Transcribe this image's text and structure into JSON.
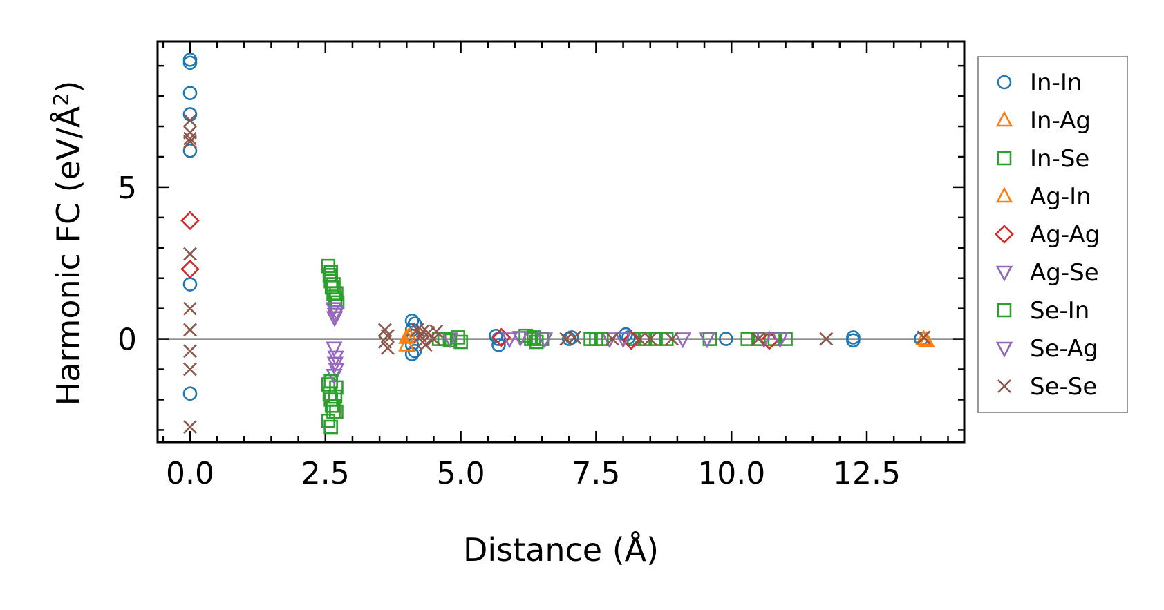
{
  "chart_data": {
    "type": "scatter",
    "xlabel": "Distance (Å)",
    "ylabel_main": "Harmonic FC (eV/Å",
    "ylabel_sup": "2",
    "ylabel_close": ")",
    "xlim": [
      -0.6,
      14.3
    ],
    "ylim": [
      -3.4,
      9.8
    ],
    "xticks": [
      0.0,
      2.5,
      5.0,
      7.5,
      10.0,
      12.5
    ],
    "xtick_labels": [
      "0.0",
      "2.5",
      "5.0",
      "7.5",
      "10.0",
      "12.5"
    ],
    "yticks": [
      0,
      5
    ],
    "ytick_labels": [
      "0",
      "5"
    ],
    "x_minor_step": 0.5,
    "y_minor_step": 1,
    "zero_line": true,
    "grid": false,
    "legend_position": "outside-right",
    "series": [
      {
        "name": "In-In",
        "marker": "circle",
        "color": "#1f77b4",
        "points": [
          [
            0,
            9.2
          ],
          [
            0,
            9.1
          ],
          [
            0,
            8.1
          ],
          [
            0,
            7.4
          ],
          [
            0,
            6.2
          ],
          [
            0,
            1.8
          ],
          [
            0,
            -1.8
          ],
          [
            4.1,
            0.6
          ],
          [
            4.15,
            0.5
          ],
          [
            4.1,
            0.3
          ],
          [
            4.12,
            0.1
          ],
          [
            4.1,
            -0.2
          ],
          [
            4.15,
            -0.4
          ],
          [
            4.1,
            -0.5
          ],
          [
            5.65,
            0.1
          ],
          [
            5.7,
            0
          ],
          [
            5.7,
            -0.2
          ],
          [
            7.0,
            0
          ],
          [
            7.05,
            0.05
          ],
          [
            8.05,
            0.15
          ],
          [
            8.1,
            0.05
          ],
          [
            9.9,
            0
          ],
          [
            12.25,
            0.05
          ],
          [
            12.25,
            -0.05
          ],
          [
            13.5,
            0
          ]
        ]
      },
      {
        "name": "In-Ag",
        "marker": "triangle-up",
        "color": "#ff7f0e",
        "points": [
          [
            4.0,
            0.05
          ],
          [
            4.0,
            -0.2
          ],
          [
            13.55,
            0
          ]
        ]
      },
      {
        "name": "In-Se",
        "marker": "square",
        "color": "#2ca02c",
        "points": [
          [
            2.55,
            2.4
          ],
          [
            2.58,
            2.1
          ],
          [
            2.6,
            1.9
          ],
          [
            2.62,
            1.7
          ],
          [
            2.65,
            1.5
          ],
          [
            2.68,
            1.3
          ],
          [
            2.7,
            1.5
          ],
          [
            2.72,
            1.2
          ],
          [
            2.55,
            -1.5
          ],
          [
            2.58,
            -1.8
          ],
          [
            2.6,
            -2.0
          ],
          [
            2.62,
            -2.2
          ],
          [
            2.65,
            -2.4
          ],
          [
            2.68,
            -1.9
          ],
          [
            2.7,
            -1.6
          ],
          [
            2.55,
            -2.7
          ],
          [
            2.6,
            -2.9
          ],
          [
            2.7,
            -2.4
          ],
          [
            4.6,
            0
          ],
          [
            4.8,
            -0.05
          ],
          [
            4.95,
            0.05
          ],
          [
            5.0,
            -0.1
          ],
          [
            6.2,
            0.1
          ],
          [
            6.3,
            0
          ],
          [
            6.4,
            -0.1
          ],
          [
            6.5,
            0
          ],
          [
            7.4,
            0
          ],
          [
            7.5,
            0
          ],
          [
            8.2,
            0
          ],
          [
            8.4,
            0
          ],
          [
            8.6,
            0
          ],
          [
            9.6,
            0
          ],
          [
            10.3,
            0
          ],
          [
            10.5,
            0
          ],
          [
            10.8,
            0
          ],
          [
            11.0,
            0
          ]
        ]
      },
      {
        "name": "Ag-In",
        "marker": "triangle-up",
        "color": "#ff7f0e",
        "points": [
          [
            4.05,
            0.1
          ],
          [
            13.6,
            -0.05
          ]
        ]
      },
      {
        "name": "Ag-Ag",
        "marker": "diamond",
        "color": "#d62728",
        "points": [
          [
            0,
            3.9
          ],
          [
            0,
            2.3
          ],
          [
            5.75,
            0.05
          ],
          [
            8.15,
            -0.05
          ],
          [
            10.7,
            -0.05
          ]
        ]
      },
      {
        "name": "Ag-Se",
        "marker": "triangle-down",
        "color": "#9467bd",
        "points": [
          [
            2.65,
            1.0
          ],
          [
            2.68,
            0.8
          ],
          [
            2.7,
            0.9
          ],
          [
            2.66,
            -0.3
          ],
          [
            2.68,
            -0.8
          ],
          [
            2.7,
            -1.0
          ],
          [
            2.66,
            -1.2
          ],
          [
            4.8,
            0
          ],
          [
            5.9,
            0
          ],
          [
            6.1,
            0.05
          ],
          [
            7.75,
            0
          ],
          [
            9.1,
            0
          ],
          [
            9.55,
            0
          ],
          [
            10.9,
            0
          ]
        ]
      },
      {
        "name": "Se-In",
        "marker": "square",
        "color": "#2ca02c",
        "points": [
          [
            2.6,
            2.2
          ],
          [
            2.65,
            1.8
          ],
          [
            2.6,
            -1.4
          ],
          [
            2.65,
            -2.2
          ],
          [
            4.7,
            0
          ],
          [
            6.35,
            0.05
          ],
          [
            7.6,
            0
          ],
          [
            8.8,
            0
          ]
        ]
      },
      {
        "name": "Se-Ag",
        "marker": "triangle-down",
        "color": "#9467bd",
        "points": [
          [
            2.67,
            0.7
          ],
          [
            2.69,
            -0.6
          ],
          [
            6.55,
            0
          ],
          [
            8.0,
            0
          ],
          [
            10.6,
            0
          ]
        ]
      },
      {
        "name": "Se-Se",
        "marker": "x",
        "color": "#8c564b",
        "points": [
          [
            0,
            7.2
          ],
          [
            0,
            6.8
          ],
          [
            0,
            6.6
          ],
          [
            0,
            6.5
          ],
          [
            0,
            2.8
          ],
          [
            0,
            1.0
          ],
          [
            0,
            0.3
          ],
          [
            0,
            -0.4
          ],
          [
            0,
            -1.0
          ],
          [
            0,
            -2.9
          ],
          [
            3.6,
            0.3
          ],
          [
            3.65,
            0.1
          ],
          [
            3.6,
            -0.1
          ],
          [
            3.65,
            -0.3
          ],
          [
            4.2,
            0.3
          ],
          [
            4.25,
            0.1
          ],
          [
            4.3,
            -0.1
          ],
          [
            4.35,
            -0.2
          ],
          [
            4.4,
            0.2
          ],
          [
            4.5,
            0
          ],
          [
            4.55,
            0.25
          ],
          [
            4.3,
            0.25
          ],
          [
            6.95,
            0
          ],
          [
            7.1,
            0.05
          ],
          [
            7.8,
            0
          ],
          [
            8.3,
            0
          ],
          [
            8.5,
            0
          ],
          [
            8.9,
            0
          ],
          [
            10.5,
            0
          ],
          [
            11.75,
            0
          ],
          [
            13.55,
            0.05
          ]
        ]
      }
    ]
  }
}
